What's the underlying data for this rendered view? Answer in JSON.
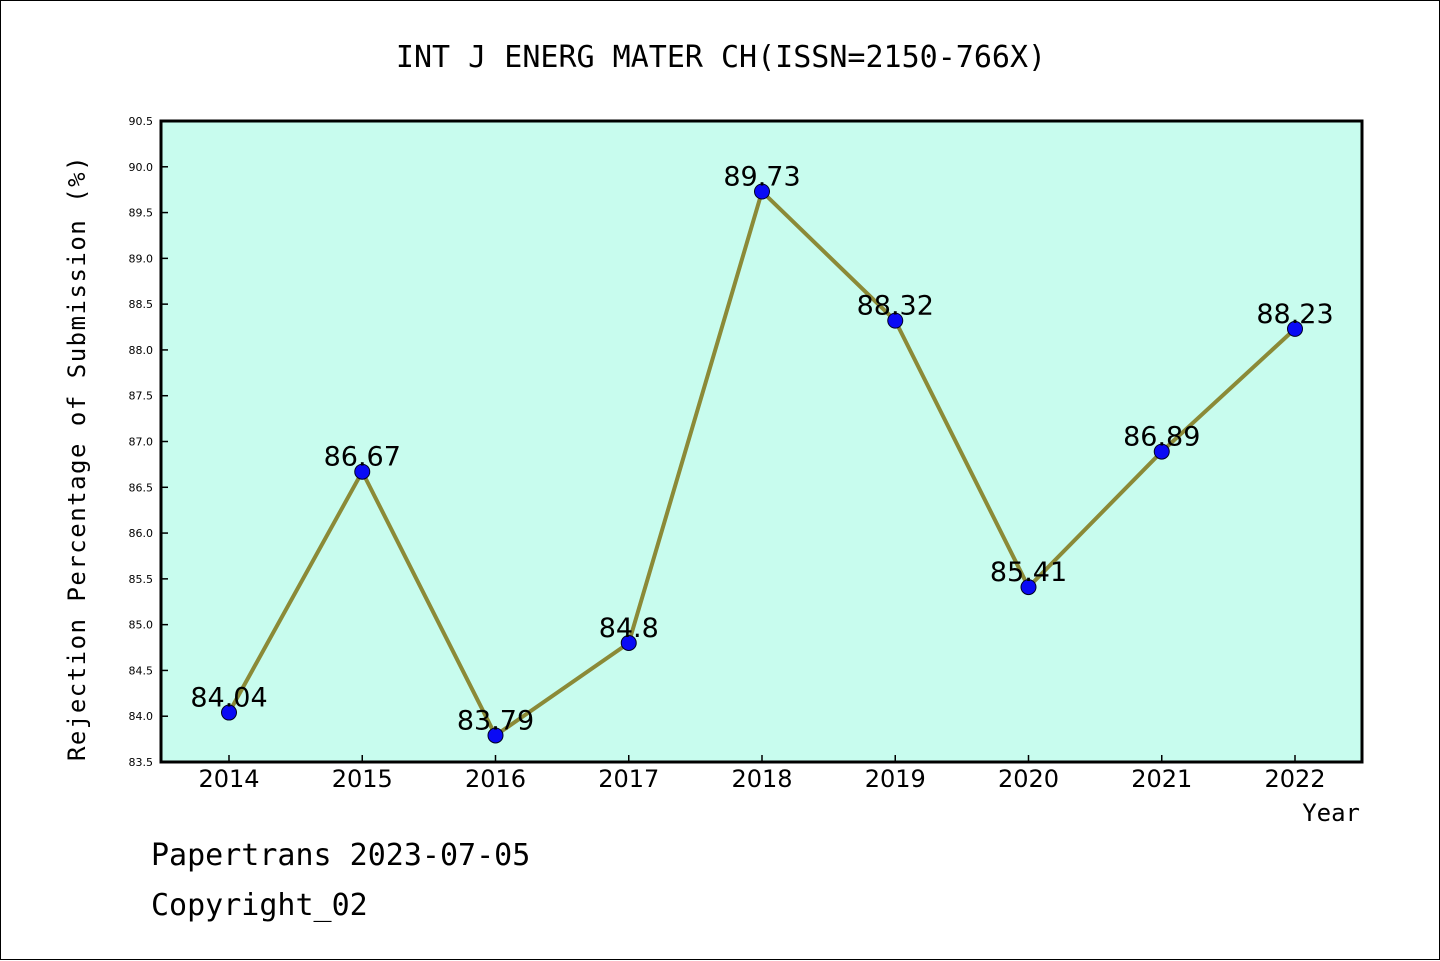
{
  "chart_data": {
    "type": "line",
    "title": "INT J ENERG MATER CH(ISSN=2150-766X)",
    "xlabel": "Year",
    "ylabel": "Rejection Percentage of Submission (%)",
    "categories": [
      "2014",
      "2015",
      "2016",
      "2017",
      "2018",
      "2019",
      "2020",
      "2021",
      "2022"
    ],
    "series": [
      {
        "values": [
          84.04,
          86.67,
          83.79,
          84.8,
          89.73,
          88.32,
          85.41,
          86.89,
          88.23
        ],
        "labels": [
          "84.04",
          "86.67",
          "83.79",
          "84.8",
          "89.73",
          "88.32",
          "85.41",
          "86.89",
          "88.23"
        ]
      }
    ],
    "ylim": [
      83.5,
      90.5
    ],
    "yticks": [
      "83.5",
      "84.0",
      "84.5",
      "85.0",
      "85.5",
      "86.0",
      "86.5",
      "87.0",
      "87.5",
      "88.0",
      "88.5",
      "89.0",
      "89.5",
      "90.0",
      "90.5"
    ],
    "grid": false,
    "legend": "none"
  },
  "footer": {
    "line1": "Papertrans 2023-07-05",
    "line2": "Copyright_02"
  },
  "colors": {
    "plot_background": "#c8fcee",
    "line": "#8b8a37",
    "marker": "#0a0af5"
  }
}
